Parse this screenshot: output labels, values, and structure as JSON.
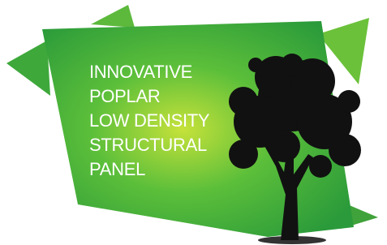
{
  "logo": {
    "lines": [
      "INNOVATIVE",
      "POPLAR",
      "LOW DENSITY",
      "STRUCTURAL",
      "PANEL"
    ]
  }
}
